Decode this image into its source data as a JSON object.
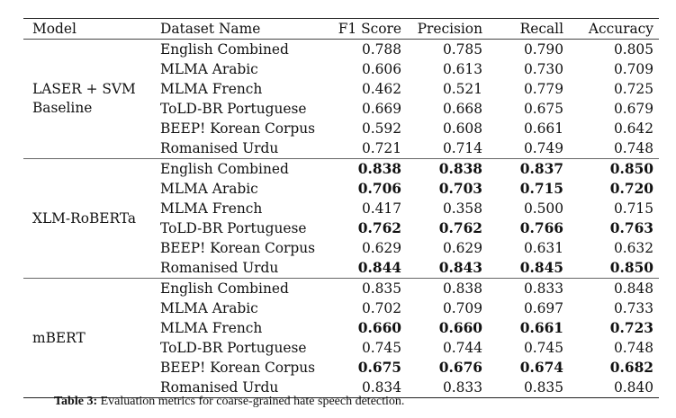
{
  "headers": {
    "model": "Model",
    "dataset": "Dataset Name",
    "f1": "F1 Score",
    "precision": "Precision",
    "recall": "Recall",
    "accuracy": "Accuracy"
  },
  "groups": [
    {
      "model": "LASER + SVM Baseline",
      "rows": [
        {
          "dataset": "English Combined",
          "f1": "0.788",
          "precision": "0.785",
          "recall": "0.790",
          "accuracy": "0.805",
          "bold": false
        },
        {
          "dataset": "MLMA Arabic",
          "f1": "0.606",
          "precision": "0.613",
          "recall": "0.730",
          "accuracy": "0.709",
          "bold": false
        },
        {
          "dataset": "MLMA French",
          "f1": "0.462",
          "precision": "0.521",
          "recall": "0.779",
          "accuracy": "0.725",
          "bold": false
        },
        {
          "dataset": "ToLD-BR Portuguese",
          "f1": "0.669",
          "precision": "0.668",
          "recall": "0.675",
          "accuracy": "0.679",
          "bold": false
        },
        {
          "dataset": "BEEP! Korean Corpus",
          "f1": "0.592",
          "precision": "0.608",
          "recall": "0.661",
          "accuracy": "0.642",
          "bold": false
        },
        {
          "dataset": "Romanised Urdu",
          "f1": "0.721",
          "precision": "0.714",
          "recall": "0.749",
          "accuracy": "0.748",
          "bold": false
        }
      ]
    },
    {
      "model": "XLM-RoBERTa",
      "rows": [
        {
          "dataset": "English Combined",
          "f1": "0.838",
          "precision": "0.838",
          "recall": "0.837",
          "accuracy": "0.850",
          "bold": true
        },
        {
          "dataset": "MLMA Arabic",
          "f1": "0.706",
          "precision": "0.703",
          "recall": "0.715",
          "accuracy": "0.720",
          "bold": true
        },
        {
          "dataset": "MLMA French",
          "f1": "0.417",
          "precision": "0.358",
          "recall": "0.500",
          "accuracy": "0.715",
          "bold": false
        },
        {
          "dataset": "ToLD-BR Portuguese",
          "f1": "0.762",
          "precision": "0.762",
          "recall": "0.766",
          "accuracy": "0.763",
          "bold": true
        },
        {
          "dataset": "BEEP! Korean Corpus",
          "f1": "0.629",
          "precision": "0.629",
          "recall": "0.631",
          "accuracy": "0.632",
          "bold": false
        },
        {
          "dataset": "Romanised Urdu",
          "f1": "0.844",
          "precision": "0.843",
          "recall": "0.845",
          "accuracy": "0.850",
          "bold": true
        }
      ]
    },
    {
      "model": "mBERT",
      "rows": [
        {
          "dataset": "English Combined",
          "f1": "0.835",
          "precision": "0.838",
          "recall": "0.833",
          "accuracy": "0.848",
          "bold": false
        },
        {
          "dataset": "MLMA Arabic",
          "f1": "0.702",
          "precision": "0.709",
          "recall": "0.697",
          "accuracy": "0.733",
          "bold": false
        },
        {
          "dataset": "MLMA French",
          "f1": "0.660",
          "precision": "0.660",
          "recall": "0.661",
          "accuracy": "0.723",
          "bold": true
        },
        {
          "dataset": "ToLD-BR Portuguese",
          "f1": "0.745",
          "precision": "0.744",
          "recall": "0.745",
          "accuracy": "0.748",
          "bold": false
        },
        {
          "dataset": "BEEP! Korean Corpus",
          "f1": "0.675",
          "precision": "0.676",
          "recall": "0.674",
          "accuracy": "0.682",
          "bold": true
        },
        {
          "dataset": "Romanised Urdu",
          "f1": "0.834",
          "precision": "0.833",
          "recall": "0.835",
          "accuracy": "0.840",
          "bold": false
        }
      ]
    }
  ],
  "caption": {
    "label": "Table 3:",
    "text": " Evaluation metrics for coarse-grained hate speech detection."
  }
}
